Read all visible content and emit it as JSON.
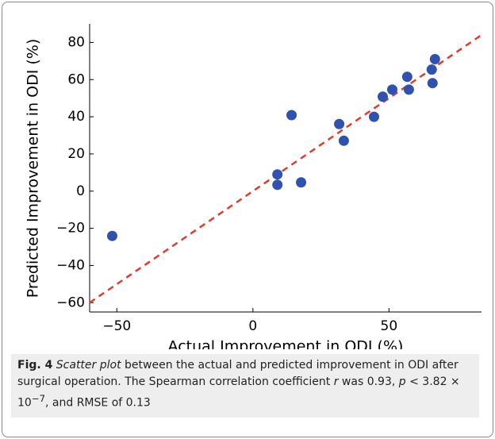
{
  "chart_data": {
    "type": "scatter",
    "xlabel": "Actual Improvement in ODI (%)",
    "ylabel": "Predicted Improvement in ODI (%)",
    "x": [
      -51.7,
      9,
      9,
      14.2,
      17.7,
      31.7,
      33.4,
      44.5,
      47.7,
      51.2,
      56.7,
      57.3,
      65.7,
      66,
      66.9
    ],
    "values": [
      -24.1,
      9,
      3.4,
      40.9,
      4.7,
      36.1,
      27.1,
      40,
      50.8,
      54.6,
      61.5,
      54.6,
      65.4,
      58.1,
      71
    ],
    "color": "#2f52b0",
    "identity_line": true,
    "identity_line_color": "#e03c2c",
    "xlim": [
      -60,
      84
    ],
    "ylim": [
      -65,
      90
    ],
    "xticks": [
      {
        "value": -50,
        "label": "−50"
      },
      0,
      50
    ],
    "yticks": [
      {
        "value": -60,
        "label": "−60"
      },
      {
        "value": -40,
        "label": "−40"
      },
      {
        "value": -20,
        "label": "−20"
      },
      0,
      20,
      40,
      60,
      80
    ]
  },
  "caption": [
    "Fig. 4",
    "Scatter plot",
    "between the actual and predicted improvement in ODI after surgical operation. The Spearman correlation coefficient",
    "r",
    "was 0.93,",
    "p",
    "< 3.82 × 10",
    "−7",
    ", and RMSE of 0.13"
  ]
}
